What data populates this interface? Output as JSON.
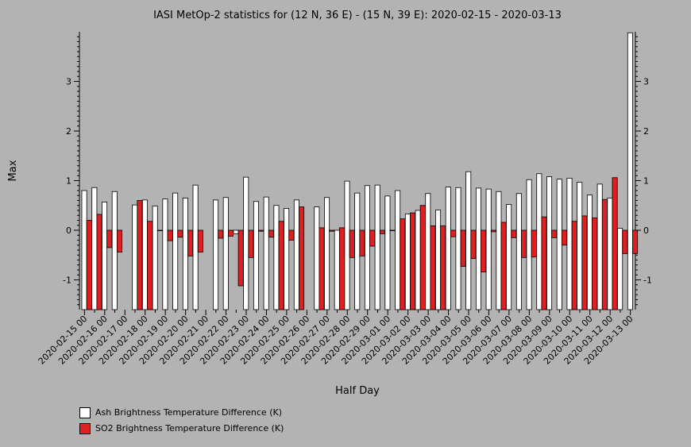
{
  "chart_data": {
    "type": "bar",
    "title": "IASI MetOp-2 statistics for (12 N, 36 E) - (15 N, 39 E): 2020-02-15 - 2020-03-13",
    "xlabel": "Half Day",
    "ylabel": "Max",
    "ylim": [
      -1.6,
      4.0
    ],
    "yticks": [
      -1,
      0,
      1,
      2,
      3
    ],
    "colors": {
      "ash": "#ffffff",
      "so2": "#e02020",
      "background": "#b3b3b3"
    },
    "categories": [
      "2020-02-15 00",
      "",
      "2020-02-16 00",
      "",
      "2020-02-17 00",
      "",
      "2020-02-18 00",
      "",
      "2020-02-19 00",
      "",
      "2020-02-20 00",
      "",
      "2020-02-21 00",
      "",
      "2020-02-22 00",
      "",
      "2020-02-23 00",
      "",
      "2020-02-24 00",
      "",
      "2020-02-25 00",
      "",
      "2020-02-26 00",
      "",
      "2020-02-27 00",
      "",
      "2020-02-28 00",
      "",
      "2020-02-29 00",
      "",
      "2020-03-01 00",
      "",
      "2020-03-02 00",
      "",
      "2020-03-03 00",
      "",
      "2020-03-04 00",
      "",
      "2020-03-05 00",
      "",
      "2020-03-06 00",
      "",
      "2020-03-07 00",
      "",
      "2020-03-08 00",
      "",
      "2020-03-09 00",
      "",
      "2020-03-10 00",
      "",
      "2020-03-11 00",
      "",
      "2020-03-12 00",
      "",
      "2020-03-13 00"
    ],
    "series": [
      {
        "name": "Ash Brightness Temperature Difference (K)",
        "values": [
          0.8,
          0.86,
          0.57,
          0.78,
          null,
          0.51,
          0.61,
          0.49,
          0.63,
          0.75,
          0.65,
          0.91,
          null,
          0.61,
          0.66,
          -0.07,
          1.07,
          0.58,
          0.67,
          0.5,
          0.44,
          0.61,
          null,
          0.47,
          0.66,
          0.0,
          0.99,
          0.75,
          0.9,
          0.91,
          0.69,
          0.8,
          0.33,
          0.4,
          0.74,
          0.41,
          0.87,
          0.86,
          1.18,
          0.85,
          0.83,
          0.78,
          0.52,
          0.74,
          1.02,
          1.14,
          1.08,
          1.03,
          1.05,
          0.97,
          0.71,
          0.93,
          0.65,
          0.04,
          3.98
        ]
      },
      {
        "name": "SO2 Brightness Temperature Difference (K)",
        "values": [
          0.2,
          0.32,
          -0.35,
          -0.44,
          null,
          0.6,
          0.18,
          -0.01,
          -0.21,
          -0.14,
          -0.52,
          -0.44,
          null,
          -0.16,
          -0.12,
          -1.12,
          -0.55,
          -0.02,
          -0.14,
          0.18,
          -0.2,
          0.47,
          null,
          0.05,
          -0.02,
          0.05,
          -0.55,
          -0.52,
          -0.32,
          -0.07,
          -0.01,
          0.23,
          0.35,
          0.5,
          0.09,
          0.09,
          -0.13,
          -0.73,
          -0.57,
          -0.84,
          -0.03,
          0.16,
          -0.15,
          -0.55,
          -0.54,
          0.27,
          -0.15,
          -0.3,
          0.18,
          0.29,
          0.25,
          0.62,
          1.06,
          -0.47,
          -0.47
        ]
      }
    ]
  }
}
